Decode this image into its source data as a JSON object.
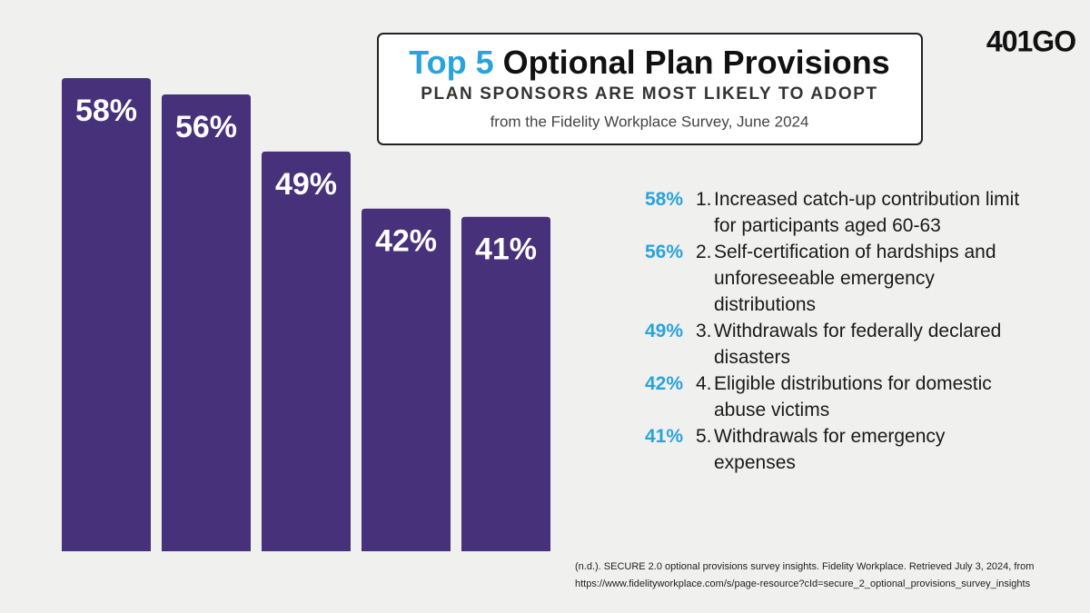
{
  "chart_data": {
    "type": "bar",
    "title_highlight": "Top 5",
    "title": "Optional Plan Provisions",
    "subtitle": "PLAN SPONSORS ARE MOST LIKELY TO ADOPT",
    "source": "from the Fidelity Workplace Survey, June 2024",
    "logo": "401GO",
    "categories": [
      "Increased catch-up contribution limit for participants aged 60-63",
      "Self-certification of hardships and unforeseeable emergency distributions",
      "Withdrawals for federally declared disasters",
      "Eligible distributions for domestic abuse victims",
      "Withdrawals for emergency expenses"
    ],
    "ranks": [
      "1.",
      "2.",
      "3.",
      "4.",
      "5."
    ],
    "values": [
      58,
      56,
      49,
      42,
      41
    ],
    "value_labels": [
      "58%",
      "56%",
      "49%",
      "42%",
      "41%"
    ],
    "color": "#46317a",
    "label_color": "#29a3dc",
    "citation": [
      "(n.d.). SECURE 2.0 optional provisions survey insights. Fidelity Workplace. Retrieved July 3, 2024, from",
      "https://www.fidelityworkplace.com/s/page-resource?cId=secure_2_optional_provisions_survey_insights"
    ]
  }
}
